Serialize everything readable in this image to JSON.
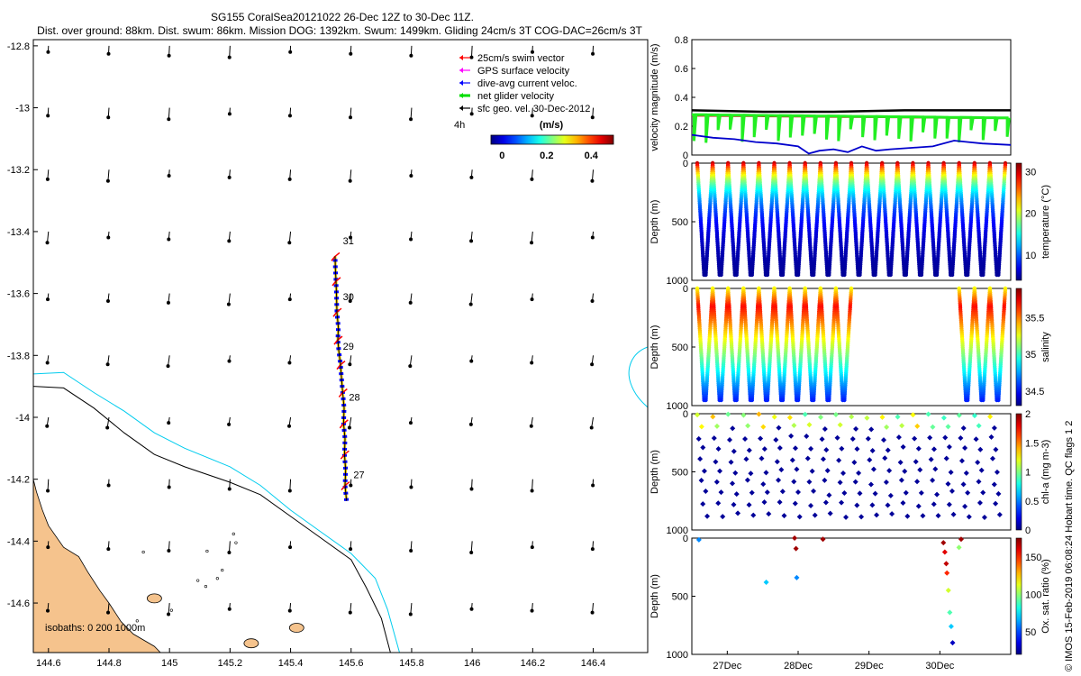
{
  "title": {
    "line1": "SG155 CoralSea20121022 26-Dec 12Z to 30-Dec 11Z.",
    "line2": "Dist. over ground: 88km. Dist. swum: 86km. Mission DOG: 1392km. Swum: 1499km. Gliding 24cm/s 3T COG-DAC=26cm/s 3T"
  },
  "colors": {
    "land": "#f5c38d",
    "iso200": "#00ccee",
    "iso1000": "#000000",
    "track_red": "#ff0000",
    "track_blue": "#0000ff",
    "track_yellow": "#ffd400",
    "velocity_black": "#000000",
    "velocity_red": "#dd0000",
    "velocity_green": "#22ee22",
    "velocity_blue": "#0000cc"
  },
  "chart_data": [
    {
      "type": "scatter",
      "name": "map",
      "xlim": [
        144.55,
        146.58
      ],
      "ylim": [
        -14.76,
        -12.78
      ],
      "xticks": [
        144.6,
        144.8,
        145,
        145.2,
        145.4,
        145.6,
        145.8,
        146,
        146.2,
        146.4
      ],
      "xtick_labels": [
        "144.6",
        "144.8",
        "145",
        "145.2",
        "145.4",
        "145.6",
        "145.8",
        "146",
        "146.2",
        "146.4"
      ],
      "yticks": [
        -12.8,
        -13,
        -13.2,
        -13.4,
        -13.6,
        -13.8,
        -14,
        -14.2,
        -14.4,
        -14.6
      ],
      "ytick_labels": [
        "-12.8",
        "-13",
        "-13.2",
        "-13.4",
        "-13.6",
        "-13.8",
        "-14",
        "-14.2",
        "-14.4",
        "-14.6"
      ],
      "legend": {
        "placement": "top-right",
        "items": [
          {
            "label": "25cm/s swim vector",
            "color": "#ff0000"
          },
          {
            "label": "GPS surface velocity",
            "color": "#ff00ff"
          },
          {
            "label": "dive-avg current veloc.",
            "color": "#0000ff"
          },
          {
            "label": "net glider velocity",
            "color": "#00dd00"
          },
          {
            "label": "sfc geo. vel. 30-Dec-2012",
            "color": "#000000"
          }
        ],
        "annotation": "4h"
      },
      "colorbar": {
        "label": "(m/s)",
        "ticks": [
          0,
          0.2,
          0.4
        ],
        "tick_labels": [
          "0",
          "0.2",
          "0.4"
        ],
        "range": [
          -0.05,
          0.5
        ]
      },
      "day_labels": [
        {
          "text": "31",
          "lon": 145.555,
          "lat": -13.43
        },
        {
          "text": "30",
          "lon": 145.555,
          "lat": -13.61
        },
        {
          "text": "29",
          "lon": 145.555,
          "lat": -13.77
        },
        {
          "text": "28",
          "lon": 145.575,
          "lat": -13.935
        },
        {
          "text": "27",
          "lon": 145.59,
          "lat": -14.185
        }
      ],
      "track": [
        [
          145.585,
          -14.27
        ],
        [
          145.58,
          -14.22
        ],
        [
          145.582,
          -14.17
        ],
        [
          145.578,
          -14.12
        ],
        [
          145.58,
          -14.07
        ],
        [
          145.575,
          -14.02
        ],
        [
          145.577,
          -13.97
        ],
        [
          145.572,
          -13.92
        ],
        [
          145.568,
          -13.87
        ],
        [
          145.565,
          -13.83
        ],
        [
          145.56,
          -13.79
        ],
        [
          145.556,
          -13.75
        ],
        [
          145.558,
          -13.71
        ],
        [
          145.553,
          -13.66
        ],
        [
          145.552,
          -13.61
        ],
        [
          145.55,
          -13.56
        ],
        [
          145.548,
          -13.52
        ],
        [
          145.547,
          -13.48
        ]
      ],
      "arrow_grid": {
        "lons": [
          144.6,
          144.8,
          145,
          145.2,
          145.4,
          145.6,
          145.8,
          146,
          146.2,
          146.4
        ],
        "lats": [
          -12.8,
          -13,
          -13.2,
          -13.4,
          -13.6,
          -13.8,
          -14,
          -14.2,
          -14.4,
          -14.6
        ]
      },
      "iso_200m": [
        [
          144.55,
          -13.86
        ],
        [
          144.65,
          -13.855
        ],
        [
          144.75,
          -13.92
        ],
        [
          144.85,
          -13.98
        ],
        [
          144.95,
          -14.05
        ],
        [
          145.05,
          -14.1
        ],
        [
          145.2,
          -14.16
        ],
        [
          145.3,
          -14.22
        ],
        [
          145.4,
          -14.3
        ],
        [
          145.5,
          -14.37
        ],
        [
          145.6,
          -14.44
        ],
        [
          145.68,
          -14.52
        ],
        [
          145.72,
          -14.62
        ],
        [
          145.76,
          -14.76
        ]
      ],
      "iso_1000m": [
        [
          144.55,
          -13.9
        ],
        [
          144.65,
          -13.905
        ],
        [
          144.75,
          -13.97
        ],
        [
          144.85,
          -14.05
        ],
        [
          144.95,
          -14.12
        ],
        [
          145.05,
          -14.16
        ],
        [
          145.2,
          -14.21
        ],
        [
          145.3,
          -14.25
        ],
        [
          145.4,
          -14.32
        ],
        [
          145.5,
          -14.39
        ],
        [
          145.6,
          -14.46
        ],
        [
          145.65,
          -14.55
        ],
        [
          145.7,
          -14.65
        ],
        [
          145.73,
          -14.76
        ]
      ],
      "isobaths_label": "isobaths: 0   200  1000m",
      "land_coast": [
        [
          144.55,
          -14.2
        ],
        [
          144.56,
          -14.24
        ],
        [
          144.58,
          -14.3
        ],
        [
          144.6,
          -14.35
        ],
        [
          144.65,
          -14.42
        ],
        [
          144.7,
          -14.45
        ],
        [
          144.73,
          -14.5
        ],
        [
          144.77,
          -14.56
        ],
        [
          144.8,
          -14.6
        ],
        [
          144.84,
          -14.66
        ],
        [
          144.88,
          -14.7
        ],
        [
          144.95,
          -14.74
        ],
        [
          144.97,
          -14.76
        ]
      ],
      "reef_islands": [
        [
          145.42,
          -14.68
        ],
        [
          145.27,
          -14.73
        ],
        [
          144.95,
          -14.585
        ]
      ]
    },
    {
      "type": "line",
      "name": "velocity",
      "ylabel": "velocity magnitude (m/s)",
      "ylim": [
        0,
        0.8
      ],
      "yticks": [
        0,
        0.2,
        0.4,
        0.6,
        0.8
      ],
      "ytick_labels": [
        "0",
        "0.2",
        "0.4",
        "0.6",
        "0.8"
      ],
      "xlim": [
        26.5,
        31.0
      ],
      "series": [
        {
          "name": "sfc geo",
          "color": "#000000",
          "x": [
            26.5,
            27.5,
            28.5,
            29.5,
            30.5,
            31.0
          ],
          "y": [
            0.31,
            0.3,
            0.3,
            0.31,
            0.31,
            0.31
          ]
        },
        {
          "name": "swim",
          "color": "#dd0000",
          "x": [
            26.5,
            27.5,
            28.5,
            29.5,
            30.5,
            31.0
          ],
          "y": [
            0.27,
            0.26,
            0.26,
            0.26,
            0.25,
            0.25
          ]
        },
        {
          "name": "net glider velocity",
          "color": "#22ee22",
          "x": [
            26.5,
            26.6,
            26.8,
            27.0,
            27.2,
            27.4,
            27.6,
            27.8,
            28.0,
            28.2,
            28.4,
            28.6,
            28.8,
            29.0,
            29.2,
            29.4,
            29.6,
            29.8,
            30.0,
            30.2,
            30.4,
            30.6,
            30.8,
            31.0
          ],
          "y": [
            0.33,
            0.3,
            0.12,
            0.16,
            0.18,
            0.12,
            0.16,
            0.15,
            0.12,
            0.14,
            0.06,
            0.12,
            0.1,
            0.08,
            0.12,
            0.1,
            0.1,
            0.08,
            0.12,
            0.14,
            0.15,
            0.16,
            0.18,
            0.18
          ]
        },
        {
          "name": "dive-avg current",
          "color": "#0000cc",
          "x": [
            26.5,
            26.8,
            27.1,
            27.4,
            27.7,
            28.0,
            28.15,
            28.3,
            28.5,
            28.7,
            28.9,
            29.1,
            29.3,
            29.6,
            29.9,
            30.2,
            30.4,
            30.6,
            31.0
          ],
          "y": [
            0.14,
            0.12,
            0.11,
            0.09,
            0.08,
            0.06,
            0.01,
            0.03,
            0.04,
            0.02,
            0.06,
            0.03,
            0.04,
            0.05,
            0.06,
            0.1,
            0.09,
            0.08,
            0.07
          ]
        }
      ]
    },
    {
      "type": "scatter",
      "name": "temperature",
      "ylabel": "Depth (m)",
      "ylim": [
        1000,
        0
      ],
      "yticks": [
        0,
        500,
        1000
      ],
      "ytick_labels": [
        "0",
        "500",
        "1000"
      ],
      "colorbar": {
        "label": "temperature (°C)",
        "range": [
          4,
          32
        ],
        "ticks": [
          10,
          20,
          30
        ],
        "tick_labels": [
          "10",
          "20",
          "30"
        ]
      },
      "profiles": 20,
      "gaps": []
    },
    {
      "type": "scatter",
      "name": "salinity",
      "ylabel": "Depth (m)",
      "ylim": [
        1000,
        0
      ],
      "yticks": [
        0,
        500,
        1000
      ],
      "ytick_labels": [
        "0",
        "500",
        "1000"
      ],
      "colorbar": {
        "label": "salinity",
        "range": [
          34.3,
          35.9
        ],
        "ticks": [
          34.5,
          35,
          35.5
        ],
        "tick_labels": [
          "34.5",
          "35",
          "35.5"
        ]
      },
      "profiles": 20,
      "visible_ranges": [
        [
          0,
          9
        ],
        [
          17,
          20
        ]
      ]
    },
    {
      "type": "scatter",
      "name": "chlorophyll",
      "ylabel": "Depth (m)",
      "ylim": [
        1000,
        0
      ],
      "yticks": [
        0,
        500,
        1000
      ],
      "ytick_labels": [
        "0",
        "500",
        "1000"
      ],
      "colorbar": {
        "label": "chl-a (mg m-3)",
        "range": [
          0,
          2
        ],
        "ticks": [
          0,
          0.5,
          1,
          1.5,
          2
        ],
        "tick_labels": [
          "0",
          "0.5",
          "1",
          "1.5",
          "2"
        ]
      }
    },
    {
      "type": "scatter",
      "name": "oxygen",
      "ylabel": "Depth (m)",
      "ylim": [
        1000,
        0
      ],
      "yticks": [
        0,
        500,
        1000
      ],
      "ytick_labels": [
        "0",
        "500",
        "1000"
      ],
      "xticks": [
        27,
        28,
        29,
        30
      ],
      "xtick_labels": [
        "27Dec",
        "28Dec",
        "29Dec",
        "30Dec"
      ],
      "colorbar": {
        "label": "Ox. sat. ratio (%)",
        "range": [
          20,
          175
        ],
        "ticks": [
          50,
          100,
          150
        ],
        "tick_labels": [
          "50",
          "100",
          "150"
        ]
      },
      "points": [
        {
          "x": 26.6,
          "d": 15,
          "v": 60
        },
        {
          "x": 27.55,
          "d": 380,
          "v": 70
        },
        {
          "x": 27.95,
          "d": 0,
          "v": 170
        },
        {
          "x": 27.97,
          "d": 90,
          "v": 170
        },
        {
          "x": 27.98,
          "d": 340,
          "v": 60
        },
        {
          "x": 28.35,
          "d": 10,
          "v": 170
        },
        {
          "x": 30.05,
          "d": 40,
          "v": 170
        },
        {
          "x": 30.07,
          "d": 120,
          "v": 160
        },
        {
          "x": 30.09,
          "d": 220,
          "v": 165
        },
        {
          "x": 30.1,
          "d": 300,
          "v": 150
        },
        {
          "x": 30.12,
          "d": 450,
          "v": 110
        },
        {
          "x": 30.14,
          "d": 640,
          "v": 90
        },
        {
          "x": 30.16,
          "d": 760,
          "v": 70
        },
        {
          "x": 30.18,
          "d": 900,
          "v": 30
        },
        {
          "x": 30.3,
          "d": 10,
          "v": 170
        },
        {
          "x": 30.27,
          "d": 80,
          "v": 100
        }
      ]
    }
  ],
  "footer": "© IMOS 15-Feb-2019 06:08:24 Hobart time. QC flags 1  2"
}
